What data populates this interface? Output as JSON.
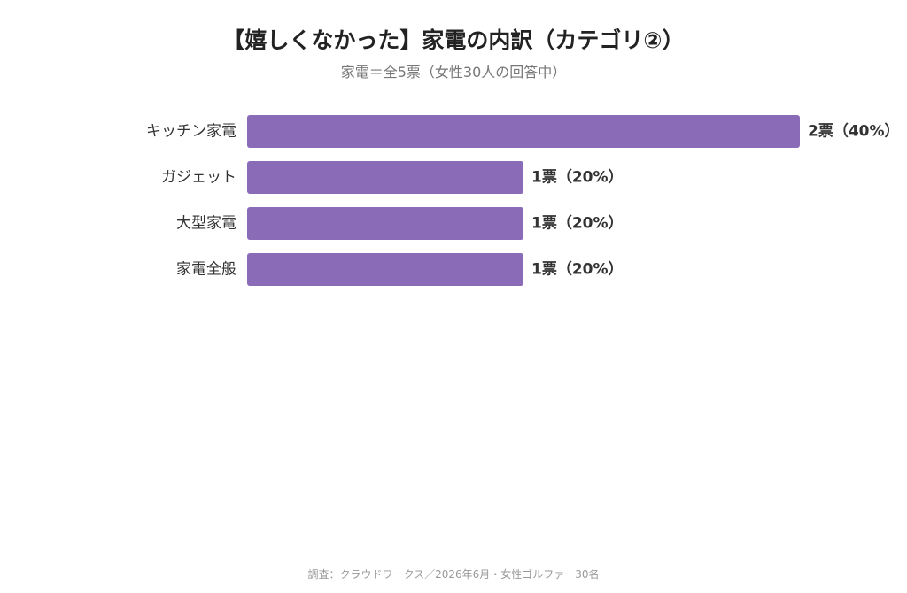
{
  "title": "【嬉しくなかった】家電の内訳（カテゴリ②）",
  "subtitle": "家電＝全5票（女性30人の回答中）",
  "footer": "調査：クラウドワークス／2026年6月・女性ゴルファー30名",
  "colors": {
    "bar": "#8a6bb8"
  },
  "chart_data": {
    "type": "bar",
    "orientation": "horizontal",
    "title": "【嬉しくなかった】家電の内訳（カテゴリ②）",
    "subtitle": "家電＝全5票（女性30人の回答中）",
    "categories": [
      "キッチン家電",
      "ガジェット",
      "大型家電",
      "家電全般"
    ],
    "values": [
      2,
      1,
      1,
      1
    ],
    "value_labels": [
      "2票（40%）",
      "1票（20%）",
      "1票（20%）",
      "1票（20%）"
    ],
    "xlim": [
      0,
      2
    ],
    "grid": false,
    "legend": "none"
  }
}
